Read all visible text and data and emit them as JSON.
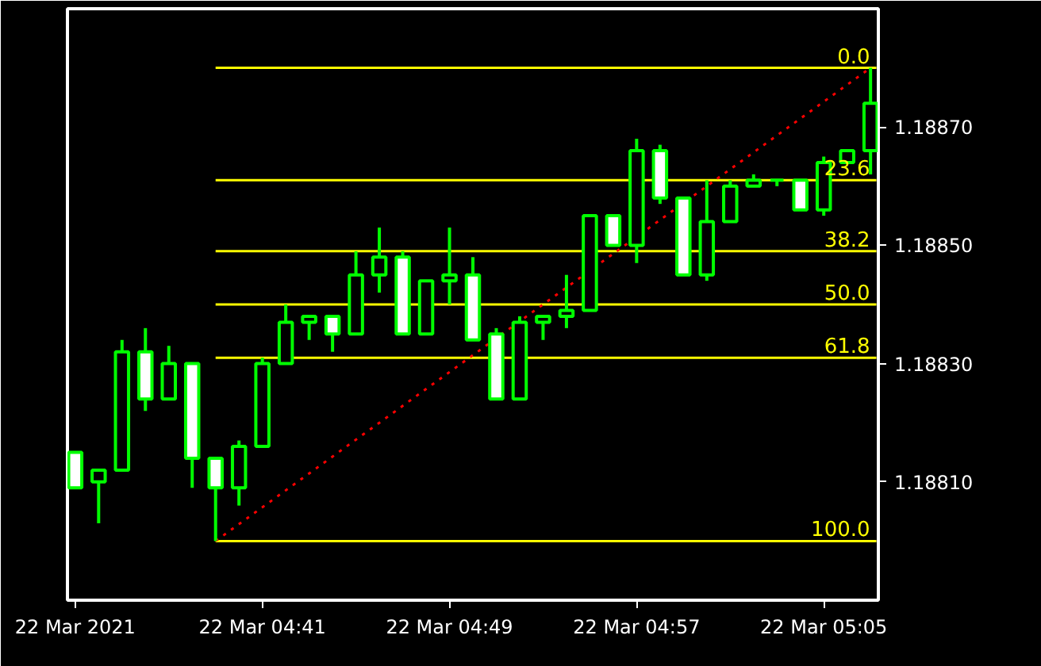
{
  "chart_data": {
    "type": "candlestick",
    "color": "#00ff00",
    "x": [
      "2021-03-22T04:33",
      "2021-03-22T04:34",
      "2021-03-22T04:35",
      "2021-03-22T04:36",
      "2021-03-22T04:37",
      "2021-03-22T04:38",
      "2021-03-22T04:39",
      "2021-03-22T04:40",
      "2021-03-22T04:41",
      "2021-03-22T04:42",
      "2021-03-22T04:43",
      "2021-03-22T04:44",
      "2021-03-22T04:45",
      "2021-03-22T04:46",
      "2021-03-22T04:47",
      "2021-03-22T04:48",
      "2021-03-22T04:49",
      "2021-03-22T04:50",
      "2021-03-22T04:51",
      "2021-03-22T04:52",
      "2021-03-22T04:53",
      "2021-03-22T04:54",
      "2021-03-22T04:55",
      "2021-03-22T04:56",
      "2021-03-22T04:57",
      "2021-03-22T04:58",
      "2021-03-22T04:59",
      "2021-03-22T05:00",
      "2021-03-22T05:01",
      "2021-03-22T05:02",
      "2021-03-22T05:03",
      "2021-03-22T05:04",
      "2021-03-22T05:05",
      "2021-03-22T05:06",
      "2021-03-22T05:07"
    ],
    "ohlc": [
      [
        1.18815,
        1.18815,
        1.18809,
        1.18809
      ],
      [
        1.1881,
        1.18812,
        1.18803,
        1.18812
      ],
      [
        1.18812,
        1.18834,
        1.18812,
        1.18832
      ],
      [
        1.18832,
        1.18836,
        1.18822,
        1.18824
      ],
      [
        1.18824,
        1.18833,
        1.18824,
        1.1883
      ],
      [
        1.1883,
        1.1883,
        1.18809,
        1.18814
      ],
      [
        1.18814,
        1.18814,
        1.188,
        1.18809
      ],
      [
        1.18809,
        1.18817,
        1.18806,
        1.18816
      ],
      [
        1.18816,
        1.18831,
        1.18816,
        1.1883
      ],
      [
        1.1883,
        1.1884,
        1.1883,
        1.18837
      ],
      [
        1.18837,
        1.18838,
        1.18834,
        1.18838
      ],
      [
        1.18838,
        1.18838,
        1.18832,
        1.18835
      ],
      [
        1.18835,
        1.18849,
        1.18835,
        1.18845
      ],
      [
        1.18845,
        1.18853,
        1.18842,
        1.18848
      ],
      [
        1.18848,
        1.18849,
        1.18835,
        1.18835
      ],
      [
        1.18835,
        1.18844,
        1.18835,
        1.18844
      ],
      [
        1.18844,
        1.18853,
        1.1884,
        1.18845
      ],
      [
        1.18845,
        1.18848,
        1.18834,
        1.18834
      ],
      [
        1.18835,
        1.18836,
        1.18824,
        1.18824
      ],
      [
        1.18824,
        1.18838,
        1.18824,
        1.18837
      ],
      [
        1.18837,
        1.18838,
        1.18834,
        1.18838
      ],
      [
        1.18838,
        1.18845,
        1.18836,
        1.18839
      ],
      [
        1.18839,
        1.18855,
        1.18839,
        1.18855
      ],
      [
        1.18855,
        1.18855,
        1.1885,
        1.1885
      ],
      [
        1.1885,
        1.18868,
        1.18847,
        1.18866
      ],
      [
        1.18866,
        1.18867,
        1.18857,
        1.18858
      ],
      [
        1.18858,
        1.18858,
        1.18845,
        1.18845
      ],
      [
        1.18845,
        1.18861,
        1.18844,
        1.18854
      ],
      [
        1.18854,
        1.18861,
        1.18854,
        1.1886
      ],
      [
        1.1886,
        1.18862,
        1.1886,
        1.18861
      ],
      [
        1.18861,
        1.18861,
        1.1886,
        1.18861
      ],
      [
        1.18861,
        1.18861,
        1.18856,
        1.18856
      ],
      [
        1.18856,
        1.18865,
        1.18855,
        1.18864
      ],
      [
        1.18864,
        1.18866,
        1.18864,
        1.18866
      ],
      [
        1.18866,
        1.1888,
        1.18862,
        1.18874
      ]
    ],
    "series": [
      {
        "type": "line",
        "name": "0.0",
        "color": "#ffff00",
        "x": [
          "2021-03-22T04:39",
          "2021-03-22T05:07:15"
        ],
        "values": [
          1.1888,
          1.1888
        ]
      },
      {
        "type": "line",
        "name": "23.6",
        "color": "#ffff00",
        "x": [
          "2021-03-22T04:39",
          "2021-03-22T05:07:15"
        ],
        "values": [
          1.18861,
          1.18861
        ]
      },
      {
        "type": "line",
        "name": "38.2",
        "color": "#ffff00",
        "x": [
          "2021-03-22T04:39",
          "2021-03-22T05:07:15"
        ],
        "values": [
          1.18849,
          1.18849
        ]
      },
      {
        "type": "line",
        "name": "50.0",
        "color": "#ffff00",
        "x": [
          "2021-03-22T04:39",
          "2021-03-22T05:07:15"
        ],
        "values": [
          1.1884,
          1.1884
        ]
      },
      {
        "type": "line",
        "name": "61.8",
        "color": "#ffff00",
        "x": [
          "2021-03-22T04:39",
          "2021-03-22T05:07:15"
        ],
        "values": [
          1.18831,
          1.18831
        ]
      },
      {
        "type": "line",
        "name": "100.0",
        "color": "#ffff00",
        "x": [
          "2021-03-22T04:39",
          "2021-03-22T05:07:15"
        ],
        "values": [
          1.188,
          1.188
        ]
      },
      {
        "type": "line",
        "color": "#ff0000",
        "line_style": "dotted",
        "x": [
          "2021-03-22T04:39",
          "2021-03-22T05:07"
        ],
        "values": [
          1.188,
          1.1888
        ]
      }
    ],
    "xlim": [
      "2021-03-22T04:32:40",
      "2021-03-22T05:07:20"
    ],
    "xticks": [
      {
        "value": "2021-03-22T04:33",
        "label": "22 Mar 2021"
      },
      {
        "value": "2021-03-22T04:41",
        "label": "22 Mar 04:41"
      },
      {
        "value": "2021-03-22T04:49",
        "label": "22 Mar 04:49"
      },
      {
        "value": "2021-03-22T04:57",
        "label": "22 Mar 04:57"
      },
      {
        "value": "2021-03-22T05:05",
        "label": "22 Mar 05:05"
      }
    ],
    "ylim": [
      1.1879,
      1.1889
    ],
    "yticks": [
      {
        "value": 1.1881,
        "label": "1.18810"
      },
      {
        "value": 1.1883,
        "label": "1.18830"
      },
      {
        "value": 1.1885,
        "label": "1.18850"
      },
      {
        "value": 1.1887,
        "label": "1.18870"
      }
    ],
    "grid": false,
    "legend": false
  }
}
